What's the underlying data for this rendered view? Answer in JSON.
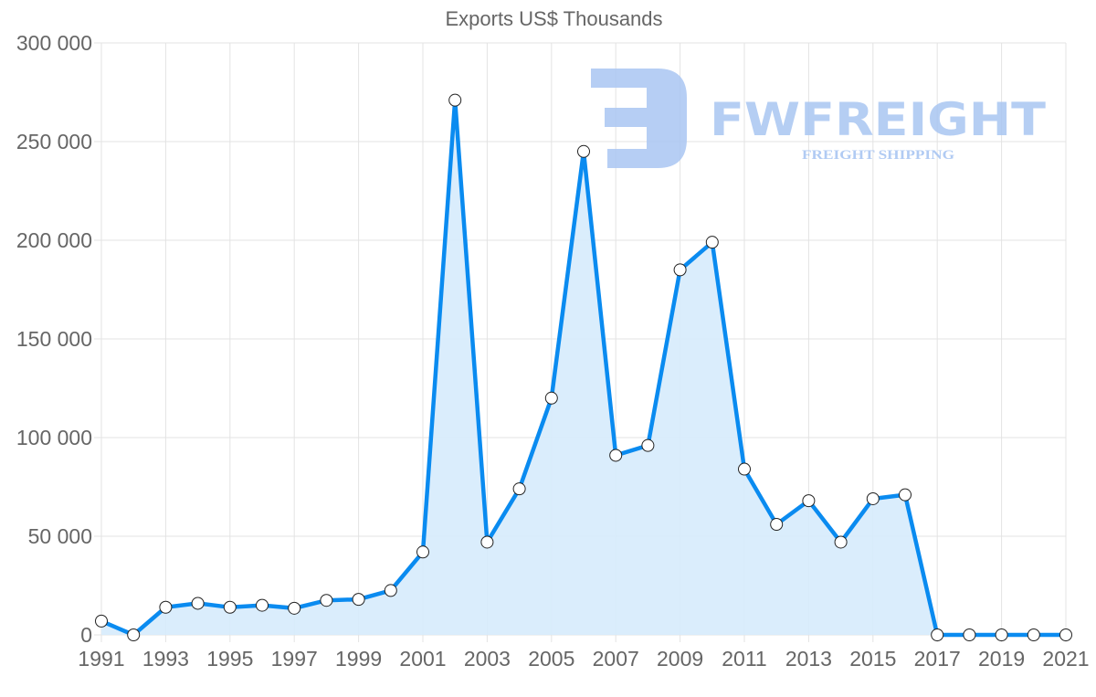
{
  "chart_data": {
    "type": "area",
    "title": "Exports US$ Thousands",
    "xlabel": "",
    "ylabel": "",
    "ylim": [
      0,
      300000
    ],
    "grid": true,
    "legend": "none",
    "y_ticks": [
      "0",
      "50 000",
      "100 000",
      "150 000",
      "200 000",
      "250 000",
      "300 000"
    ],
    "x_tick_labels": [
      "1991",
      "1993",
      "1995",
      "1997",
      "1999",
      "2001",
      "2003",
      "2005",
      "2007",
      "2009",
      "2011",
      "2013",
      "2015",
      "2017",
      "2019",
      "2021"
    ],
    "x": [
      1991,
      1992,
      1993,
      1994,
      1995,
      1996,
      1997,
      1998,
      1999,
      2000,
      2001,
      2002,
      2003,
      2004,
      2005,
      2006,
      2007,
      2008,
      2009,
      2010,
      2011,
      2012,
      2013,
      2014,
      2015,
      2016,
      2017,
      2018,
      2019,
      2020,
      2021
    ],
    "series": [
      {
        "name": "Exports US$ Thousands",
        "values": [
          7000,
          0,
          14000,
          16000,
          14000,
          15000,
          13500,
          17500,
          18000,
          22500,
          42000,
          271000,
          47000,
          74000,
          120000,
          245000,
          91000,
          96000,
          185000,
          199000,
          84000,
          56000,
          68000,
          47000,
          69000,
          71000,
          0,
          0,
          0,
          0,
          0
        ]
      }
    ],
    "colors": {
      "line": "#0a8bf0",
      "fill": "#d6ebfc",
      "grid": "#e3e3e3",
      "text": "#666666",
      "point_fill": "#ffffff",
      "point_stroke": "#222222"
    }
  },
  "watermark": {
    "brand": "FWFREIGHT",
    "tagline": "FREIGHT SHIPPING",
    "color": "#a9c6f2"
  }
}
